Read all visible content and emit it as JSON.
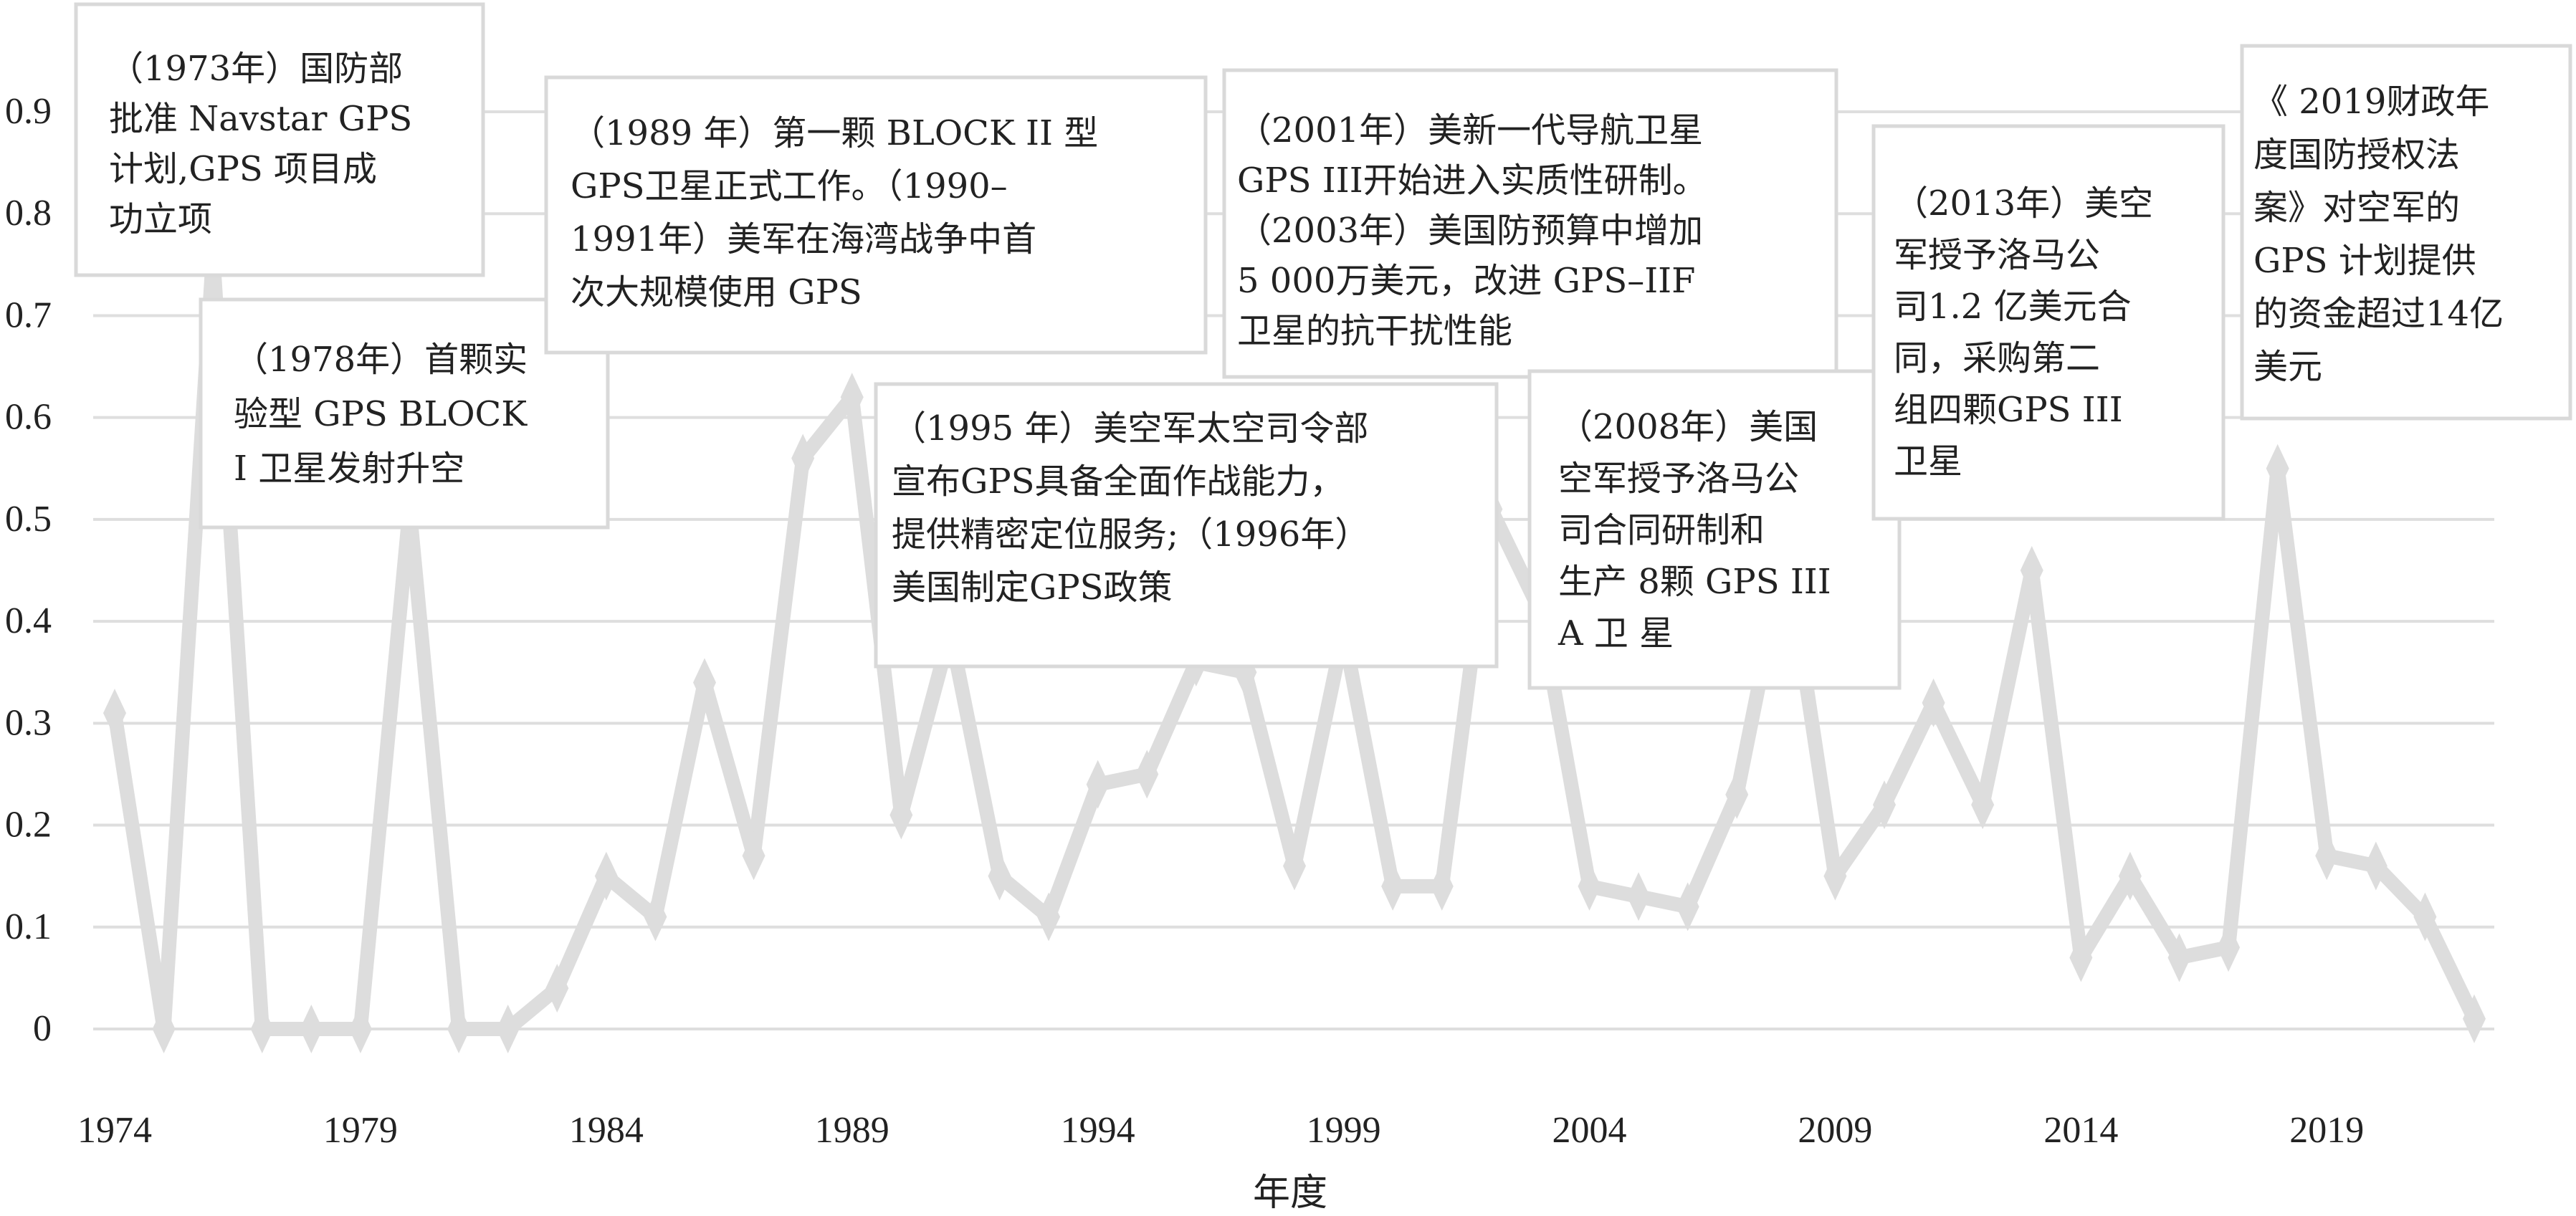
{
  "chart_data": {
    "type": "line",
    "xlabel": "年度",
    "ylabel": "",
    "ylim": [
      0,
      0.9
    ],
    "xlim": [
      1974,
      2022
    ],
    "y_ticks": [
      0,
      0.1,
      0.2,
      0.3,
      0.4,
      0.5,
      0.6,
      0.7,
      0.8,
      0.9
    ],
    "y_tick_labels": [
      "0",
      "0.1",
      "0.2",
      "0.3",
      "0.4",
      "0.5",
      "0.6",
      "0.7",
      "0.8",
      "0.9"
    ],
    "x_ticks": [
      1974,
      1979,
      1984,
      1989,
      1994,
      1999,
      2004,
      2009,
      2014,
      2019
    ],
    "x_tick_labels": [
      "1974",
      "1979",
      "1984",
      "1989",
      "1994",
      "1999",
      "2004",
      "2009",
      "2014",
      "2019"
    ],
    "grid": true,
    "legend": "none",
    "line_color": "#dddddd",
    "series": [
      {
        "x": [
          1974,
          1975,
          1976,
          1977,
          1978,
          1979,
          1980,
          1981,
          1982,
          1983,
          1984,
          1985,
          1986,
          1987,
          1988,
          1989,
          1990,
          1991,
          1992,
          1993,
          1994,
          1995,
          1996,
          1997,
          1998,
          1999,
          2000,
          2001,
          2002,
          2003,
          2004,
          2005,
          2006,
          2007,
          2008,
          2009,
          2010,
          2011,
          2012,
          2013,
          2014,
          2015,
          2016,
          2017,
          2018,
          2019,
          2020,
          2021,
          2022
        ],
        "values": [
          0.31,
          0.0,
          0.76,
          0.0,
          0.0,
          0.0,
          0.51,
          0.0,
          0.0,
          0.04,
          0.15,
          0.11,
          0.34,
          0.17,
          0.56,
          0.62,
          0.21,
          0.39,
          0.15,
          0.11,
          0.24,
          0.25,
          0.36,
          0.35,
          0.16,
          0.39,
          0.14,
          0.14,
          0.51,
          0.41,
          0.14,
          0.13,
          0.12,
          0.23,
          0.47,
          0.15,
          0.22,
          0.32,
          0.22,
          0.45,
          0.07,
          0.15,
          0.07,
          0.08,
          0.55,
          0.17,
          0.16,
          0.11,
          0.01
        ]
      }
    ],
    "annotations": [
      {
        "lines": [
          "（1973年）国防部",
          "批准 Navstar GPS",
          "计划,GPS 项目成",
          "功立项"
        ]
      },
      {
        "lines": [
          "（1978年）首颗实",
          "验型 GPS BLOCK",
          "I 卫星发射升空"
        ]
      },
      {
        "lines": [
          "（1989 年）第一颗 BLOCK II 型",
          "GPS卫星正式工作。（1990–",
          "1991年）美军在海湾战争中首",
          "次大规模使用 GPS"
        ]
      },
      {
        "lines": [
          "（1995 年）美空军太空司令部",
          "宣布GPS具备全面作战能力，",
          "提供精密定位服务;（1996年）",
          "美国制定GPS政策"
        ]
      },
      {
        "lines": [
          "（2001年）美新一代导航卫星",
          "GPS III开始进入实质性研制。",
          "（2003年）美国防预算中增加",
          "5 000万美元，改进 GPS–IIF",
          "卫星的抗干扰性能"
        ]
      },
      {
        "lines": [
          "（2008年）美国",
          "空军授予洛马公",
          "司合同研制和",
          "生产 8颗 GPS III",
          "A 卫 星"
        ]
      },
      {
        "lines": [
          "（2013年）美空",
          "军授予洛马公",
          "司1.2 亿美元合",
          "同，采购第二",
          "组四颗GPS III",
          "卫星"
        ]
      },
      {
        "lines": [
          "《 2019财政年",
          "度国防授权法",
          "案》对空军的",
          "GPS 计划提供",
          "的资金超过14亿",
          "美元"
        ]
      }
    ]
  }
}
